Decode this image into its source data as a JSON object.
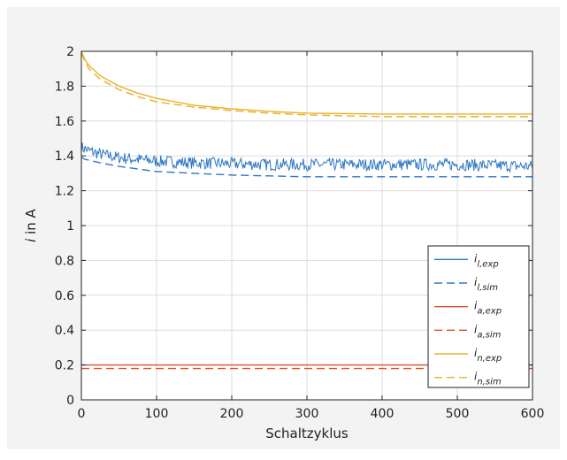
{
  "chart_data": {
    "type": "line",
    "title": "",
    "xlabel": "Schaltzyklus",
    "ylabel": "i in A",
    "ylabel_parts": {
      "var": "i",
      "rest": " in A"
    },
    "xlim": [
      0,
      600
    ],
    "ylim": [
      0,
      2
    ],
    "xticks": [
      0,
      100,
      200,
      300,
      400,
      500,
      600
    ],
    "xtick_labels": [
      "0",
      "100",
      "200",
      "300",
      "400",
      "500",
      "600"
    ],
    "yticks": [
      0,
      0.2,
      0.4,
      0.6,
      0.8,
      1,
      1.2,
      1.4,
      1.6,
      1.8,
      2
    ],
    "ytick_labels": [
      "0",
      "0.2",
      "0.4",
      "0.6",
      "0.8",
      "1",
      "1.2",
      "1.4",
      "1.6",
      "1.8",
      "2"
    ],
    "grid": true,
    "legend_position": "bottom-right",
    "series": [
      {
        "name": "i_l,exp",
        "label_main": "i",
        "label_sub": "l,exp",
        "color": "#2e78c2",
        "dash": "solid",
        "noise": 0.035,
        "x": [
          0,
          10,
          25,
          50,
          75,
          100,
          150,
          200,
          250,
          300,
          350,
          400,
          450,
          500,
          550,
          600
        ],
        "y": [
          1.45,
          1.43,
          1.41,
          1.39,
          1.38,
          1.37,
          1.36,
          1.355,
          1.35,
          1.35,
          1.35,
          1.35,
          1.35,
          1.35,
          1.345,
          1.34
        ]
      },
      {
        "name": "i_l,sim",
        "label_main": "i",
        "label_sub": "l,sim",
        "color": "#2e78c2",
        "dash": "dashed",
        "noise": 0,
        "x": [
          0,
          5,
          25,
          50,
          100,
          150,
          200,
          250,
          300,
          400,
          500,
          600
        ],
        "y": [
          1.39,
          1.38,
          1.36,
          1.34,
          1.31,
          1.3,
          1.29,
          1.285,
          1.28,
          1.28,
          1.28,
          1.28
        ]
      },
      {
        "name": "i_a,exp",
        "label_main": "i",
        "label_sub": "a,exp",
        "color": "#d9512c",
        "dash": "solid",
        "noise": 0,
        "x": [
          0,
          600
        ],
        "y": [
          0.2,
          0.2
        ]
      },
      {
        "name": "i_a,sim",
        "label_main": "i",
        "label_sub": "a,sim",
        "color": "#d9512c",
        "dash": "dashed",
        "noise": 0,
        "x": [
          0,
          600
        ],
        "y": [
          0.18,
          0.18
        ]
      },
      {
        "name": "i_n,exp",
        "label_main": "i",
        "label_sub": "n,exp",
        "color": "#eab02a",
        "dash": "solid",
        "noise": 0,
        "x": [
          0,
          5,
          10,
          25,
          50,
          75,
          100,
          150,
          200,
          250,
          300,
          400,
          500,
          600
        ],
        "y": [
          2.0,
          1.95,
          1.92,
          1.86,
          1.8,
          1.76,
          1.73,
          1.69,
          1.67,
          1.655,
          1.645,
          1.64,
          1.64,
          1.64
        ]
      },
      {
        "name": "i_n,sim",
        "label_main": "i",
        "label_sub": "n,sim",
        "color": "#eab02a",
        "dash": "dashed",
        "noise": 0,
        "x": [
          0,
          5,
          10,
          25,
          50,
          75,
          100,
          150,
          200,
          250,
          300,
          400,
          500,
          600
        ],
        "y": [
          1.99,
          1.94,
          1.9,
          1.84,
          1.78,
          1.74,
          1.71,
          1.68,
          1.66,
          1.645,
          1.635,
          1.625,
          1.625,
          1.625
        ]
      }
    ]
  }
}
